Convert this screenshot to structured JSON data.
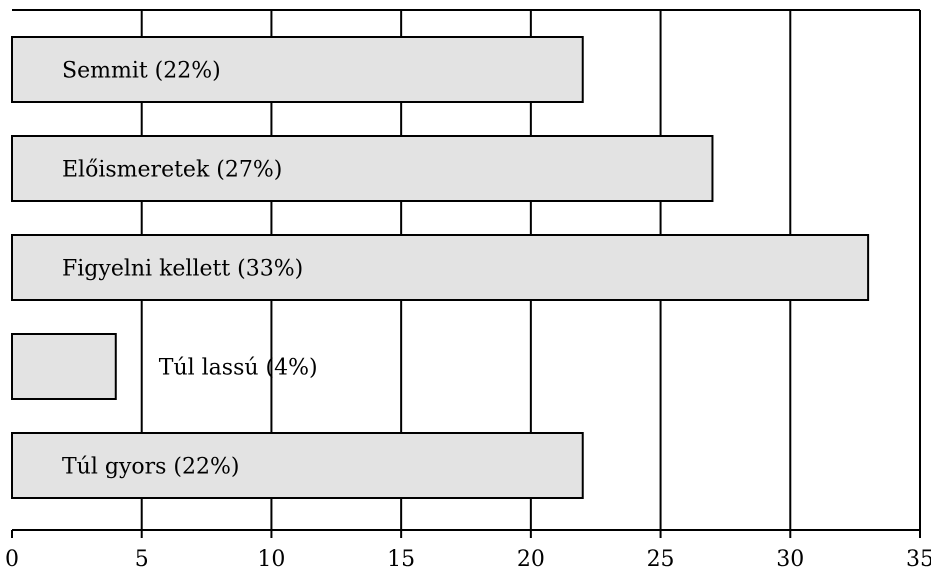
{
  "chart_data": {
    "type": "bar",
    "orientation": "horizontal",
    "title": "",
    "xlabel": "",
    "ylabel": "",
    "xlim": [
      0,
      35
    ],
    "x_ticks": [
      0,
      5,
      10,
      15,
      20,
      25,
      30,
      35
    ],
    "grid": true,
    "categories": [
      "Semmit (22%)",
      "Előismeretek (27%)",
      "Figyelni kellett (33%)",
      "Túl lassú (4%)",
      "Túl gyors (22%)"
    ],
    "values": [
      22,
      27,
      33,
      4,
      22
    ],
    "colors": {
      "bar_fill": "#e3e3e3",
      "bar_stroke": "#000000",
      "grid": "#000000"
    }
  }
}
